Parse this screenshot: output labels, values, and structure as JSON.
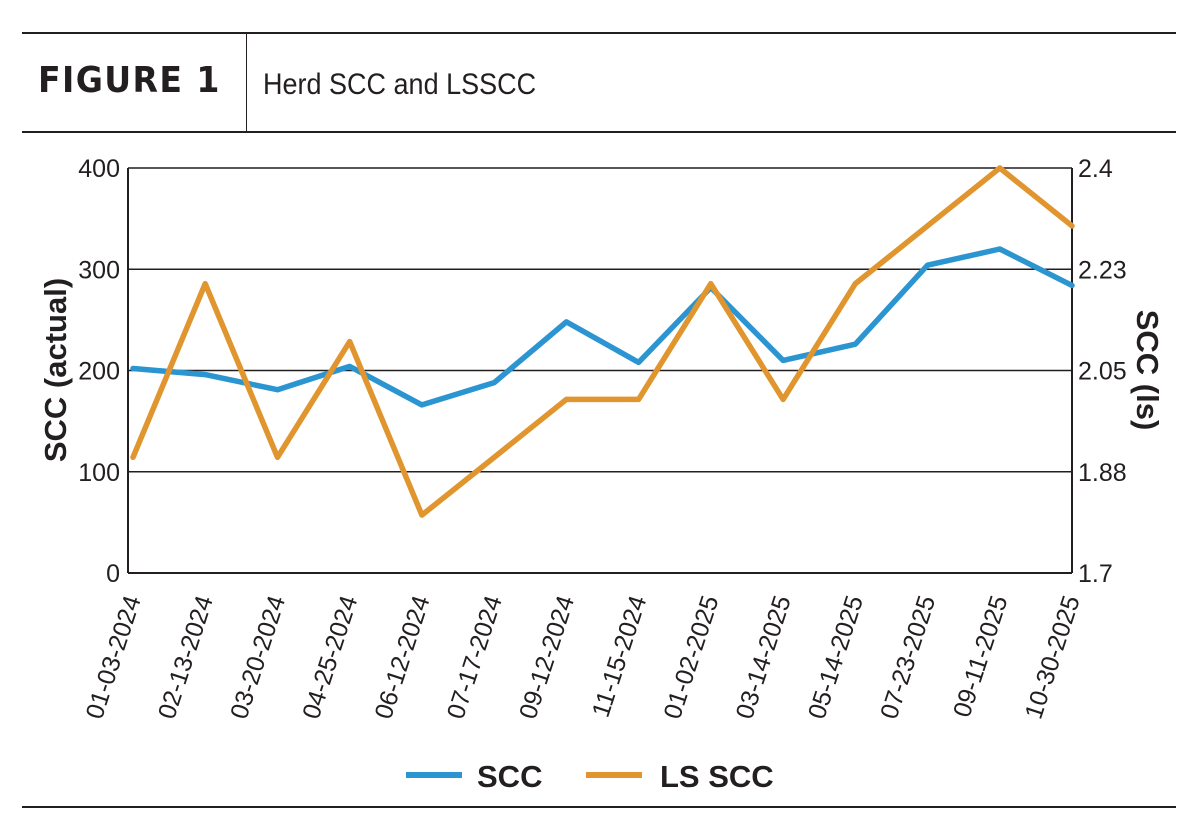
{
  "header": {
    "figure_label": "FIGURE 1",
    "figure_title": "Herd SCC and LSSCC"
  },
  "colors": {
    "scc": "#2b95d1",
    "ls_scc": "#e0952e",
    "text": "#231f20"
  },
  "chart_data": {
    "type": "line",
    "title": "Herd SCC and LSSCC",
    "ylabel": "SCC (actual)",
    "y2label": "SCC (ls)",
    "categories": [
      "01-03-2024",
      "02-13-2024",
      "03-20-2024",
      "04-25-2024",
      "06-12-2024",
      "07-17-2024",
      "09-12-2024",
      "11-15-2024",
      "01-02-2025",
      "03-14-2025",
      "05-14-2025",
      "07-23-2025",
      "09-11-2025",
      "10-30-2025"
    ],
    "ylim": [
      0,
      400
    ],
    "y_ticks": [
      "0",
      "100",
      "200",
      "300",
      "400"
    ],
    "y2lim": [
      1.7,
      2.4
    ],
    "y2_ticks": [
      "1.7",
      "1.88",
      "2.05",
      "2.23",
      "2.4"
    ],
    "grid": true,
    "legend": "bottom",
    "series": [
      {
        "name": "SCC",
        "axis": "left",
        "color": "#2b95d1",
        "values": [
          202,
          196,
          181,
          204,
          166,
          188,
          248,
          208,
          282,
          210,
          226,
          304,
          320,
          284
        ]
      },
      {
        "name": "LS SCC",
        "axis": "right",
        "color": "#e0952e",
        "values": [
          1.9,
          2.2,
          1.9,
          2.1,
          1.8,
          1.9,
          2.0,
          2.0,
          2.2,
          2.0,
          2.2,
          2.3,
          2.4,
          2.3
        ]
      }
    ]
  }
}
